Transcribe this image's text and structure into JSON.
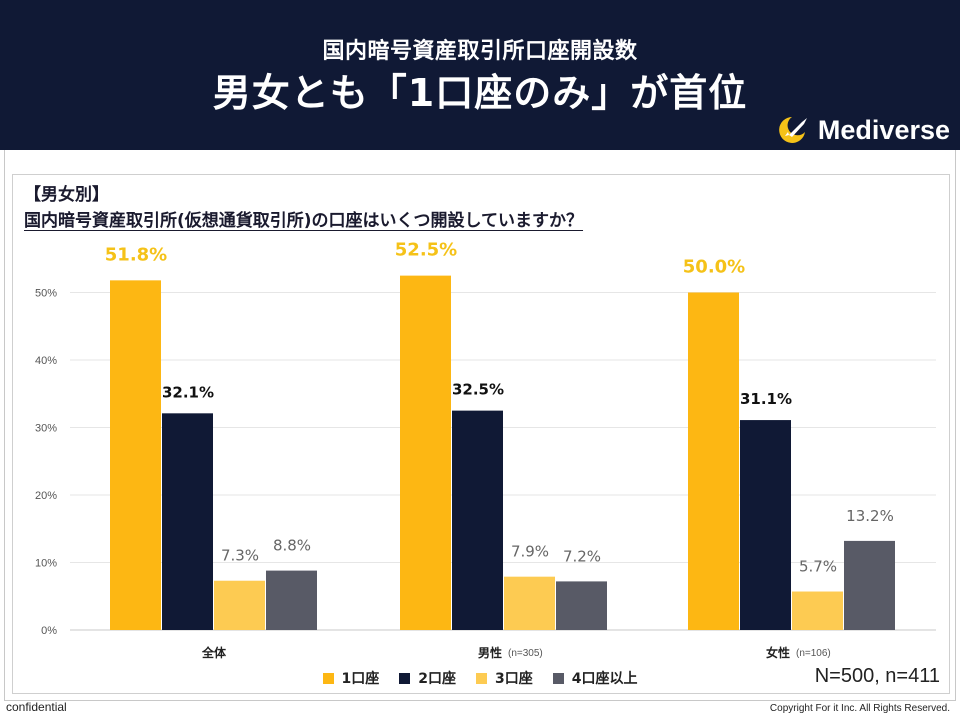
{
  "header": {
    "subtitle": "国内暗号資産取引所口座開設数",
    "title": "男女とも「1口座のみ」が首位",
    "brand": "Mediverse"
  },
  "section_label": "【男女別】",
  "question": "国内暗号資産取引所(仮想通貨取引所)の口座はいくつ開設していますか？",
  "sample_size": "N=500, n=411",
  "footer": {
    "confidential": "confidential",
    "copyright": "Copyright For it Inc. All Rights Reserved."
  },
  "colors": {
    "header_bg": "#101935",
    "accent_yellow": "#F5C218",
    "series": [
      "#FDB713",
      "#101935",
      "#FDCB52",
      "#585A66"
    ]
  },
  "chart_data": {
    "type": "bar",
    "categories": [
      "全体",
      "男性",
      "女性"
    ],
    "category_notes": [
      "",
      "(n=305)",
      "(n=106)"
    ],
    "series": [
      {
        "name": "1口座",
        "values": [
          51.8,
          52.5,
          50.0
        ]
      },
      {
        "name": "2口座",
        "values": [
          32.1,
          32.5,
          31.1
        ]
      },
      {
        "name": "3口座",
        "values": [
          7.3,
          7.9,
          5.7
        ]
      },
      {
        "name": "4口座以上",
        "values": [
          8.8,
          7.2,
          13.2
        ]
      }
    ],
    "y_ticks": [
      "0%",
      "10%",
      "20%",
      "30%",
      "40%",
      "50%"
    ],
    "ylim": [
      0,
      50
    ],
    "grid": true,
    "legend_position": "bottom-center"
  }
}
